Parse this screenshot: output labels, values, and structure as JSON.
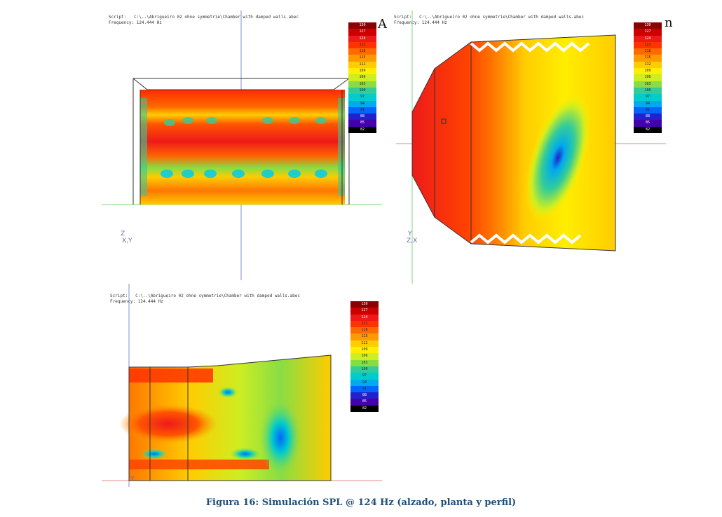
{
  "caption": "Figura 16: Simulación SPL @ 124 Hz (alzado, planta y perfil)",
  "panels": [
    {
      "id": "alzado",
      "script_label": "Script:",
      "script_path": "C:\\..\\Abrigueiro 02 ohne symmetrie\\Chamber with damped walls.abec",
      "frequency_label": "Frequency: 124.444 Hz",
      "axis_labels": [
        "Z",
        "X,Y"
      ],
      "edge_glyph": "A"
    },
    {
      "id": "planta",
      "script_label": "Script:",
      "script_path": "C:\\..\\Abrigueiro 02 ohne symmetrie\\Chamber with damped walls.abec",
      "frequency_label": "Frequency: 124.444 Hz",
      "axis_labels": [
        "Y",
        "Z,X"
      ],
      "edge_glyph": "n"
    },
    {
      "id": "perfil",
      "script_label": "Script:",
      "script_path": "C:\\..\\Abrigueiro 02 ohne symmetrie\\Chamber with damped walls.abec",
      "frequency_label": "Frequency: 124.444 Hz",
      "axis_labels": [
        "Y"
      ],
      "edge_glyph": ""
    }
  ],
  "color_scale": {
    "ticks": [
      "130",
      "127",
      "124",
      "121",
      "118",
      "115",
      "112",
      "109",
      "106",
      "103",
      "100",
      "97",
      "94",
      "91",
      "88",
      "85",
      "82"
    ],
    "colors": [
      "#8b0000",
      "#cc0000",
      "#ee1a1a",
      "#ff3300",
      "#ff6a00",
      "#ff9900",
      "#ffcc00",
      "#ffee00",
      "#ccee22",
      "#88dd44",
      "#33cc99",
      "#00cccc",
      "#00aaee",
      "#0066ff",
      "#2222cc",
      "#4400aa",
      "#000000"
    ]
  }
}
